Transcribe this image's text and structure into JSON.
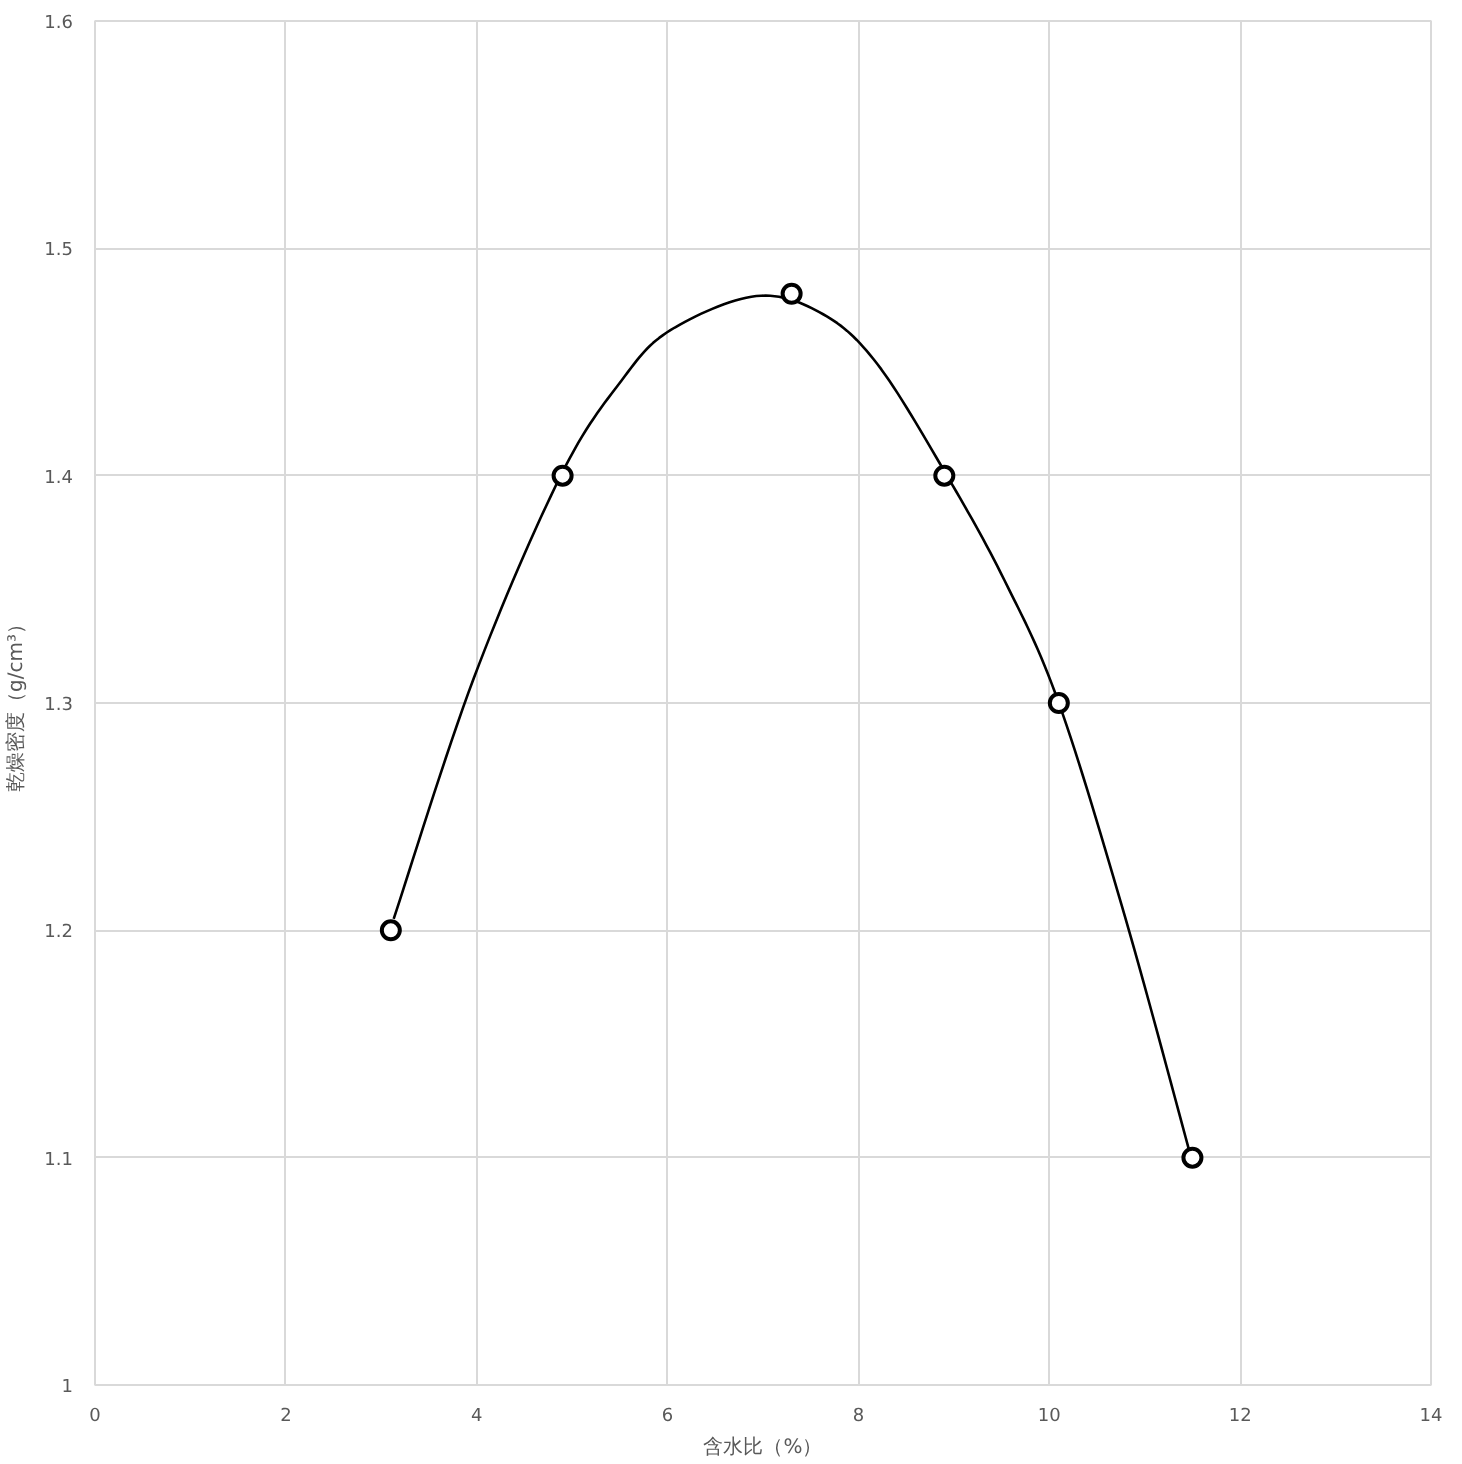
{
  "chart_data": {
    "type": "scatter",
    "xlabel": "含水比（%）",
    "ylabel": "乾燥密度（g/cm³）",
    "xlim": [
      0,
      14
    ],
    "xticks": [
      0,
      2,
      4,
      6,
      8,
      10,
      12,
      14
    ],
    "ylim": [
      1,
      1.6
    ],
    "yticks": [
      1,
      1.1,
      1.2,
      1.3,
      1.4,
      1.5,
      1.6
    ],
    "grid": true,
    "series": [
      {
        "type": "line",
        "color": "#000000",
        "marker": "none",
        "line_style": "solid",
        "x": [
          3.13,
          3.97,
          4.88,
          5.52,
          6.03,
          6.93,
          7.63,
          8.2,
          8.9,
          9.53,
          10.1,
          10.8,
          11.48
        ],
        "values": [
          1.205,
          1.311,
          1.4,
          1.442,
          1.464,
          1.479,
          1.471,
          1.449,
          1.402,
          1.354,
          1.3,
          1.205,
          1.101
        ]
      },
      {
        "type": "scatter",
        "color": "#000000",
        "marker": "circle",
        "x": [
          3.1,
          4.9,
          7.3,
          8.9,
          10.1,
          11.5
        ],
        "values": [
          1.2,
          1.4,
          1.48,
          1.4,
          1.3,
          1.1
        ]
      }
    ]
  }
}
